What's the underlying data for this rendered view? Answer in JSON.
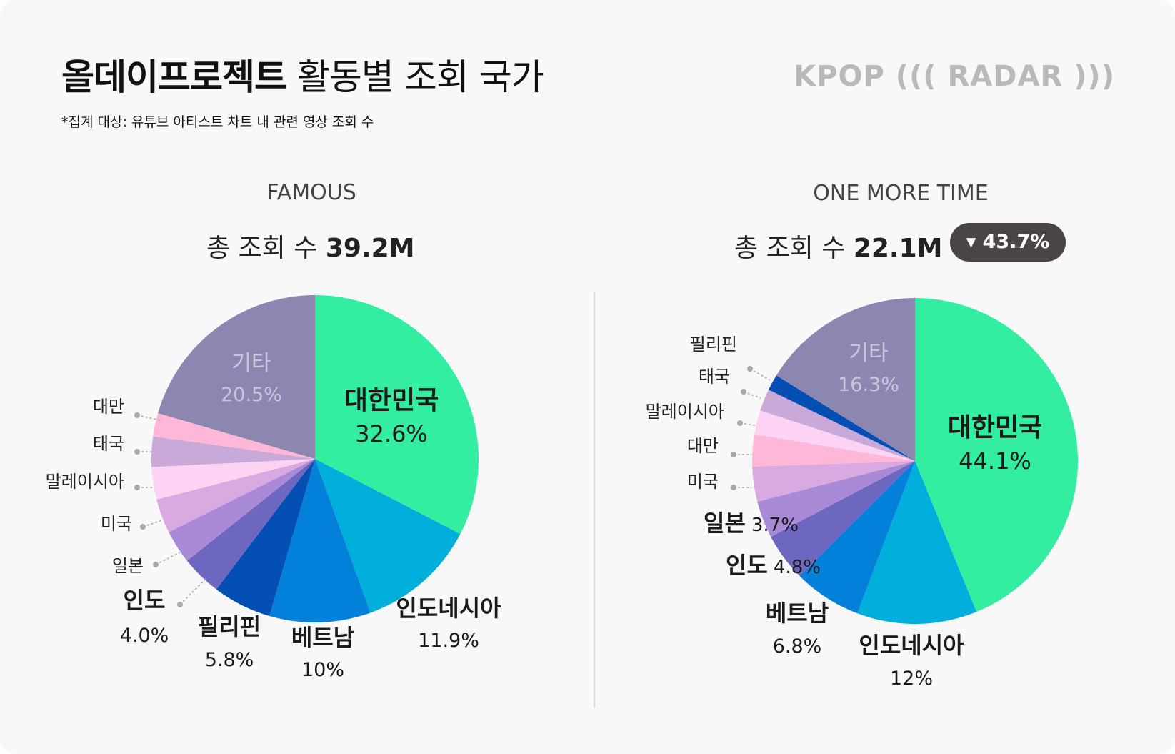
{
  "header": {
    "title_bold": "올데이프로젝트",
    "title_rest": "활동별 조회 국가",
    "subtitle": "*집계 대상: 유튜브 아티스트 차트 내 관련 영상 조회 수",
    "logo": "KPOP ((( RADAR )))"
  },
  "charts": [
    {
      "title": "FAMOUS",
      "total_prefix": "총 조회 수",
      "total_value": "39.2M"
    },
    {
      "title": "ONE MORE TIME",
      "total_prefix": "총 조회 수",
      "total_value": "22.1M",
      "badge": "▾ 43.7%"
    }
  ],
  "colors": {
    "대한민국": "#33eda1",
    "인도네시아": "#00aedb",
    "베트남": "#0380da",
    "필리핀": "#034fb3",
    "인도": "#6e67c0",
    "일본": "#a98ad6",
    "미국": "#d9a9e1",
    "말레이시아": "#fdd3f4",
    "태국": "#c9a9d8",
    "대만": "#ffb7d7",
    "기타": "#8c87b0"
  },
  "chart_data": [
    {
      "type": "pie",
      "title": "FAMOUS",
      "total": "39.2M",
      "slices": [
        {
          "label": "대한민국",
          "value": 32.6,
          "value_label": "32.6%"
        },
        {
          "label": "인도네시아",
          "value": 11.9,
          "value_label": "11.9%"
        },
        {
          "label": "베트남",
          "value": 10,
          "value_label": "10%"
        },
        {
          "label": "필리핀",
          "value": 5.8,
          "value_label": "5.8%"
        },
        {
          "label": "인도",
          "value": 4.0,
          "value_label": "4.0%"
        },
        {
          "label": "일본",
          "value": 3.3
        },
        {
          "label": "미국",
          "value": 3.4
        },
        {
          "label": "말레이시아",
          "value": 3.2
        },
        {
          "label": "태국",
          "value": 3.0
        },
        {
          "label": "대만",
          "value": 2.3
        },
        {
          "label": "기타",
          "value": 20.5,
          "value_label": "20.5%"
        }
      ]
    },
    {
      "type": "pie",
      "title": "ONE MORE TIME",
      "total": "22.1M",
      "change": "▾ 43.7%",
      "slices": [
        {
          "label": "대한민국",
          "value": 44.1,
          "value_label": "44.1%"
        },
        {
          "label": "인도네시아",
          "value": 12,
          "value_label": "12%"
        },
        {
          "label": "베트남",
          "value": 6.8,
          "value_label": "6.8%"
        },
        {
          "label": "인도",
          "value": 4.8,
          "value_label": "4.8%"
        },
        {
          "label": "일본",
          "value": 3.7,
          "value_label": "3.7%"
        },
        {
          "label": "미국",
          "value": 3.5
        },
        {
          "label": "대만",
          "value": 3.2
        },
        {
          "label": "말레이시아",
          "value": 2.4
        },
        {
          "label": "태국",
          "value": 2.2
        },
        {
          "label": "필리핀",
          "value": 1.6
        },
        {
          "label": "기타",
          "value": 16.3,
          "value_label": "16.3%"
        }
      ]
    }
  ]
}
